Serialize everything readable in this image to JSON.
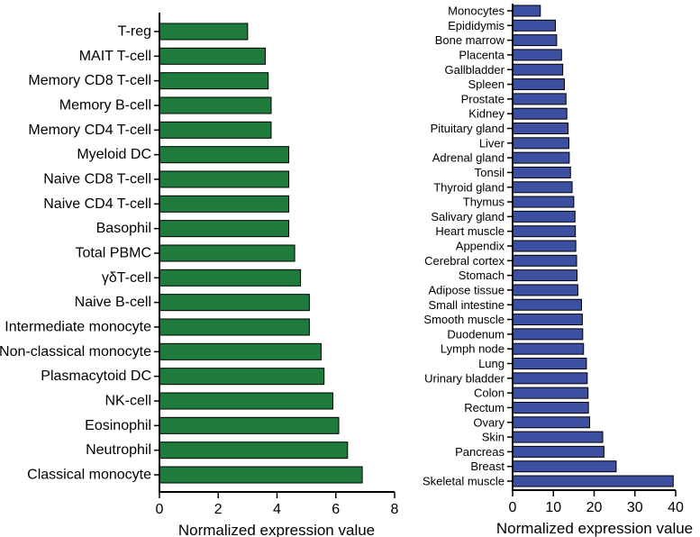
{
  "chart_data": [
    {
      "type": "bar",
      "orientation": "horizontal",
      "title": "",
      "xlabel": "Normalized expression value",
      "ylabel": "",
      "xlim": [
        0,
        8
      ],
      "xticks": [
        0,
        2,
        4,
        6,
        8
      ],
      "bar_color": "#1e7b3c",
      "categories": [
        "T-reg",
        "MAIT T-cell",
        "Memory CD8 T-cell",
        "Memory B-cell",
        "Memory CD4 T-cell",
        "Myeloid DC",
        "Naive CD8 T-cell",
        "Naive CD4 T-cell",
        "Basophil",
        "Total PBMC",
        "γδT-cell",
        "Naive B-cell",
        "Intermediate monocyte",
        "Non-classical monocyte",
        "Plasmacytoid DC",
        "NK-cell",
        "Eosinophil",
        "Neutrophil",
        "Classical monocyte"
      ],
      "values": [
        3.0,
        3.6,
        3.7,
        3.8,
        3.8,
        4.4,
        4.4,
        4.4,
        4.4,
        4.6,
        4.8,
        5.1,
        5.1,
        5.5,
        5.6,
        5.9,
        6.1,
        6.4,
        6.9
      ]
    },
    {
      "type": "bar",
      "orientation": "horizontal",
      "title": "",
      "xlabel": "Normalized expression value",
      "ylabel": "",
      "xlim": [
        0,
        40
      ],
      "xticks": [
        0,
        10,
        20,
        30,
        40
      ],
      "bar_color": "#3c4fa0",
      "categories": [
        "Monocytes",
        "Epididymis",
        "Bone marrow",
        "Placenta",
        "Gallbladder",
        "Spleen",
        "Prostate",
        "Kidney",
        "Pituitary gland",
        "Liver",
        "Adrenal gland",
        "Tonsil",
        "Thyroid gland",
        "Thymus",
        "Salivary gland",
        "Heart muscle",
        "Appendix",
        "Cerebral cortex",
        "Stomach",
        "Adipose tissue",
        "Small intestine",
        "Smooth muscle",
        "Duodenum",
        "Lymph node",
        "Lung",
        "Urinary bladder",
        "Colon",
        "Rectum",
        "Ovary",
        "Skin",
        "Pancreas",
        "Breast",
        "Skeletal muscle"
      ],
      "values": [
        6.8,
        10.5,
        10.8,
        12.0,
        12.3,
        12.7,
        13.1,
        13.3,
        13.6,
        13.8,
        13.9,
        14.2,
        14.6,
        15.0,
        15.3,
        15.4,
        15.5,
        15.7,
        15.8,
        16.0,
        16.9,
        17.1,
        17.2,
        17.4,
        18.1,
        18.3,
        18.5,
        18.6,
        18.9,
        22.1,
        22.4,
        25.4,
        39.4
      ]
    }
  ]
}
